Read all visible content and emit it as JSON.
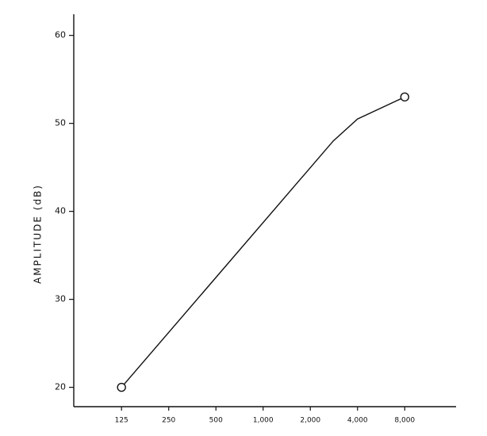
{
  "chart_data": {
    "type": "line",
    "y_label": "AMPLITUDE (dB)",
    "x": [
      125,
      2800,
      4000,
      8000
    ],
    "series": [
      {
        "color": "#111111",
        "values": [
          20,
          48,
          50.5,
          53
        ]
      }
    ],
    "xscale": "log",
    "xlim": [
      62,
      17000
    ],
    "xticks": [
      125,
      250,
      500,
      {
        "value": 1000,
        "label": "1,000"
      },
      {
        "value": 2000,
        "label": "2,000"
      },
      {
        "value": 4000,
        "label": "4,000"
      },
      {
        "value": 8000,
        "label": "8,000"
      }
    ],
    "ylim": [
      17.8,
      62.4
    ],
    "yticks": [
      20,
      30,
      40,
      50,
      60
    ],
    "grid": false
  }
}
